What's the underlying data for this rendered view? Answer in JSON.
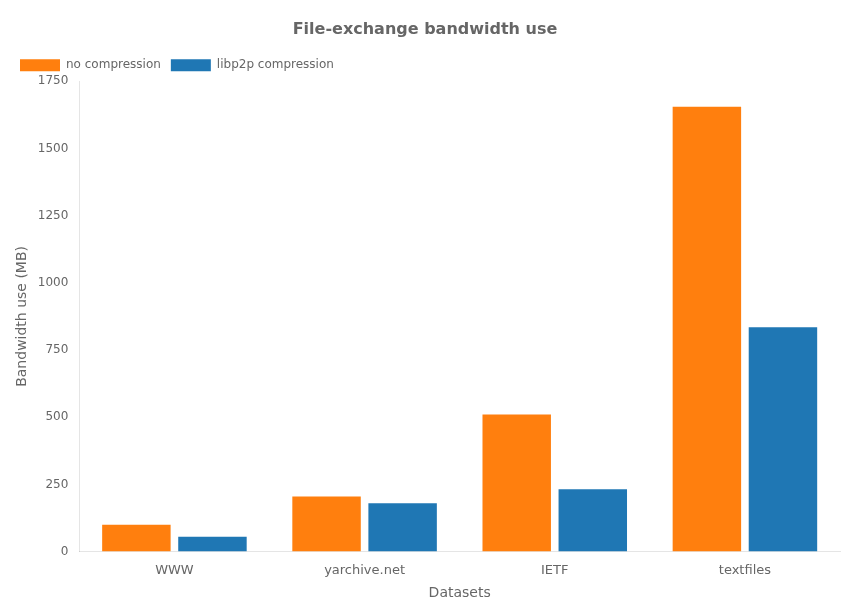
{
  "chart_data": {
    "type": "bar",
    "title": "File-exchange bandwidth use",
    "xlabel": "Datasets",
    "ylabel": "Bandwidth use (MB)",
    "categories": [
      "WWW",
      "yarchive.net",
      "IETF",
      "textfiles"
    ],
    "series": [
      {
        "name": "no compression",
        "color": "#ff7f0e",
        "values": [
          100,
          205,
          510,
          1655
        ]
      },
      {
        "name": "libp2p compression",
        "color": "#1f77b4",
        "values": [
          55,
          180,
          232,
          835
        ]
      }
    ],
    "ylim": [
      0,
      1750
    ],
    "yticks": [
      0,
      250,
      500,
      750,
      1000,
      1250,
      1500,
      1750
    ],
    "grid": false,
    "legend": "upper left"
  }
}
